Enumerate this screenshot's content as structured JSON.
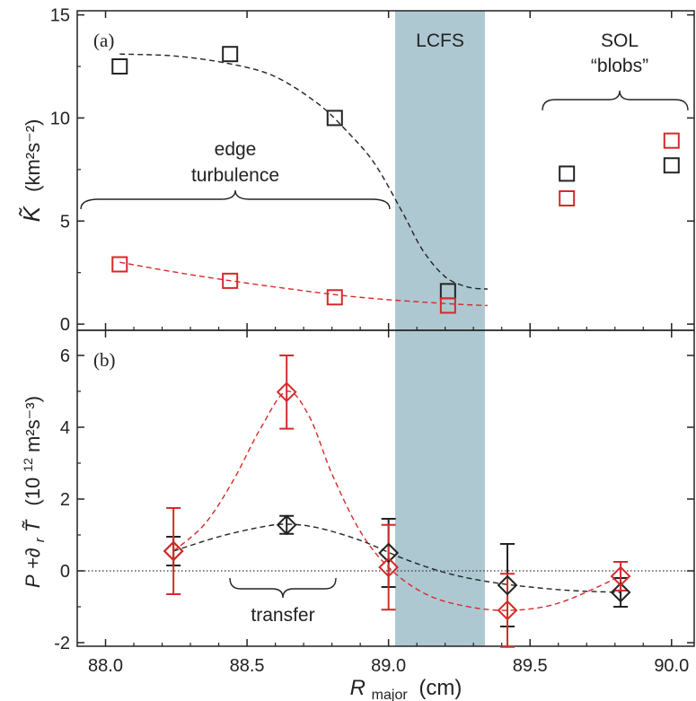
{
  "chart_data": [
    {
      "panel": "(a)",
      "type": "scatter",
      "xlim": [
        87.9,
        90.08
      ],
      "ylim": [
        -0.3,
        15.2
      ],
      "ylabel_symbol": "K̃",
      "ylabel_unit": "(km²s⁻²)",
      "y_ticks": [
        0,
        5,
        10,
        15
      ],
      "series": [
        {
          "color": "#222222",
          "marker": "square",
          "x": [
            88.05,
            88.44,
            88.81,
            89.21,
            89.63,
            90.0
          ],
          "y": [
            12.5,
            13.1,
            10.0,
            1.6,
            7.3,
            7.7
          ]
        },
        {
          "color": "#d42a2a",
          "marker": "square",
          "x": [
            88.05,
            88.44,
            88.81,
            89.21,
            89.63,
            90.0
          ],
          "y": [
            2.9,
            2.1,
            1.3,
            0.9,
            6.1,
            8.9
          ]
        }
      ],
      "fits": [
        {
          "color": "#222222",
          "style": "dashed",
          "x": [
            88.05,
            88.25,
            88.45,
            88.6,
            88.75,
            88.85,
            88.95,
            89.05,
            89.12,
            89.2,
            89.28,
            89.35
          ],
          "y": [
            13.1,
            13.0,
            12.6,
            12.0,
            10.7,
            9.4,
            7.8,
            5.4,
            3.6,
            2.3,
            1.8,
            1.7
          ]
        },
        {
          "color": "#d42a2a",
          "style": "dashed",
          "x": [
            88.05,
            88.3,
            88.6,
            88.9,
            89.2,
            89.35
          ],
          "y": [
            3.0,
            2.4,
            1.8,
            1.3,
            1.0,
            0.9
          ]
        }
      ],
      "annotations": {
        "panel_label": "(a)",
        "region_label": "LCFS",
        "edge_label_line1": "edge",
        "edge_label_line2": "turbulence",
        "sol_label_line1": "SOL",
        "sol_label_line2": "“blobs”"
      }
    },
    {
      "panel": "(b)",
      "type": "scatter",
      "xlim": [
        87.9,
        90.08
      ],
      "ylim": [
        -2.1,
        6.7
      ],
      "ylabel_prefix": "P",
      "ylabel_mid": "+∂",
      "ylabel_sub": "r",
      "ylabel_symbol": "T̃",
      "ylabel_unit_pre": "(10",
      "ylabel_unit_sup": "12",
      "ylabel_unit_post": "m²s⁻³)",
      "y_ticks": [
        -2,
        0,
        2,
        4,
        6
      ],
      "x_ticks": [
        88.0,
        88.5,
        89.0,
        89.5,
        90.0
      ],
      "x_tick_labels": [
        "88.0",
        "88.5",
        "89.0",
        "89.5",
        "90.0"
      ],
      "xlabel_main": "R",
      "xlabel_sub": "major",
      "xlabel_unit": "(cm)",
      "series": [
        {
          "color": "#222222",
          "marker": "diamond",
          "x": [
            88.24,
            88.64,
            89.0,
            89.42,
            89.82
          ],
          "y": [
            0.55,
            1.28,
            0.5,
            -0.4,
            -0.6
          ],
          "err": [
            0.4,
            0.25,
            0.95,
            1.15,
            0.4
          ]
        },
        {
          "color": "#d42a2a",
          "marker": "diamond",
          "x": [
            88.24,
            88.64,
            89.0,
            89.42,
            89.82
          ],
          "y": [
            0.55,
            4.98,
            0.1,
            -1.1,
            -0.15
          ],
          "err": [
            1.2,
            1.02,
            1.18,
            1.02,
            0.4
          ]
        }
      ],
      "fits": [
        {
          "color": "#222222",
          "style": "dashed",
          "x": [
            88.24,
            88.4,
            88.55,
            88.64,
            88.75,
            88.9,
            89.05,
            89.2,
            89.35,
            89.5,
            89.65,
            89.82
          ],
          "y": [
            0.55,
            0.95,
            1.22,
            1.3,
            1.2,
            0.85,
            0.35,
            -0.05,
            -0.3,
            -0.45,
            -0.55,
            -0.6
          ]
        },
        {
          "color": "#d42a2a",
          "style": "dashed",
          "x": [
            88.24,
            88.35,
            88.45,
            88.55,
            88.64,
            88.72,
            88.8,
            88.9,
            89.0,
            89.12,
            89.25,
            89.42,
            89.6,
            89.82
          ],
          "y": [
            0.55,
            1.3,
            2.5,
            4.0,
            5.0,
            4.3,
            2.7,
            1.1,
            0.1,
            -0.6,
            -0.95,
            -1.1,
            -0.9,
            -0.15
          ]
        }
      ],
      "reference_line_y": 0,
      "annotations": {
        "panel_label": "(b)",
        "transfer_label": "transfer"
      }
    }
  ]
}
